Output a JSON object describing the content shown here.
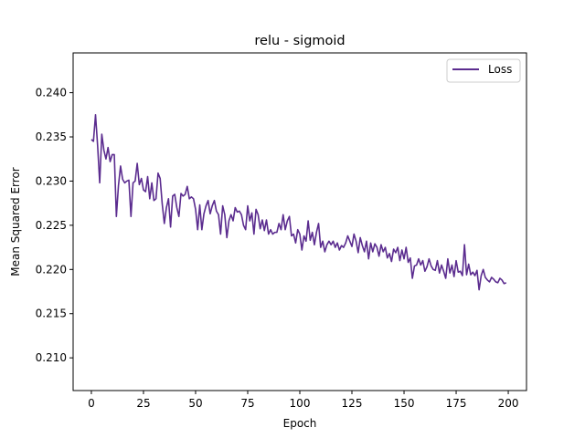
{
  "chart_data": {
    "type": "line",
    "title": "relu - sigmoid",
    "xlabel": "Epoch",
    "ylabel": "Mean Squared Error",
    "xlim": [
      -8.75,
      208.75
    ],
    "ylim": [
      0.2063,
      0.2445
    ],
    "xticks": [
      0,
      25,
      50,
      75,
      100,
      125,
      150,
      175,
      200
    ],
    "yticks": [
      0.21,
      0.215,
      0.22,
      0.225,
      0.23,
      0.235,
      0.24
    ],
    "ytick_labels": [
      "0.210",
      "0.215",
      "0.220",
      "0.225",
      "0.230",
      "0.235",
      "0.240"
    ],
    "grid": false,
    "legend": {
      "position": "top-right",
      "entries": [
        "Loss"
      ]
    },
    "series": [
      {
        "name": "Loss",
        "color": "#5b2c8f",
        "x_start": 0,
        "x_step": 1,
        "values": [
          0.2347,
          0.2345,
          0.2375,
          0.234,
          0.2298,
          0.2353,
          0.2335,
          0.2325,
          0.2338,
          0.2322,
          0.233,
          0.233,
          0.226,
          0.2295,
          0.2317,
          0.2302,
          0.2298,
          0.23,
          0.2301,
          0.226,
          0.2298,
          0.23,
          0.232,
          0.2296,
          0.2303,
          0.229,
          0.2288,
          0.2305,
          0.228,
          0.2298,
          0.2278,
          0.228,
          0.2309,
          0.2303,
          0.2274,
          0.2252,
          0.227,
          0.228,
          0.2248,
          0.2283,
          0.2285,
          0.227,
          0.226,
          0.2286,
          0.2283,
          0.2285,
          0.2294,
          0.228,
          0.2282,
          0.228,
          0.2268,
          0.2245,
          0.2273,
          0.2245,
          0.2263,
          0.2272,
          0.2278,
          0.2263,
          0.2272,
          0.2278,
          0.2266,
          0.2262,
          0.224,
          0.2272,
          0.2262,
          0.2236,
          0.2255,
          0.2262,
          0.2255,
          0.227,
          0.2265,
          0.2266,
          0.2262,
          0.225,
          0.2245,
          0.2272,
          0.2255,
          0.2264,
          0.224,
          0.2268,
          0.2262,
          0.2246,
          0.2256,
          0.2244,
          0.2256,
          0.224,
          0.2245,
          0.224,
          0.2242,
          0.2242,
          0.2252,
          0.2245,
          0.2262,
          0.2245,
          0.2255,
          0.226,
          0.2238,
          0.224,
          0.223,
          0.2245,
          0.224,
          0.2222,
          0.2238,
          0.2232,
          0.2255,
          0.2233,
          0.2242,
          0.2228,
          0.2242,
          0.2252,
          0.2225,
          0.2232,
          0.222,
          0.2228,
          0.2232,
          0.2228,
          0.2232,
          0.2225,
          0.223,
          0.2222,
          0.2227,
          0.2225,
          0.223,
          0.2238,
          0.2232,
          0.2226,
          0.224,
          0.2232,
          0.2219,
          0.2236,
          0.2227,
          0.222,
          0.2232,
          0.2212,
          0.223,
          0.222,
          0.2229,
          0.2225,
          0.2215,
          0.2228,
          0.222,
          0.2225,
          0.2213,
          0.2218,
          0.2209,
          0.2223,
          0.2219,
          0.2225,
          0.221,
          0.2222,
          0.2212,
          0.2225,
          0.2208,
          0.2213,
          0.219,
          0.2204,
          0.2205,
          0.2212,
          0.2205,
          0.221,
          0.2198,
          0.2203,
          0.2212,
          0.2204,
          0.22,
          0.2199,
          0.221,
          0.2196,
          0.2205,
          0.2198,
          0.219,
          0.2212,
          0.2196,
          0.2205,
          0.2192,
          0.221,
          0.2197,
          0.2198,
          0.2193,
          0.2228,
          0.2194,
          0.2206,
          0.2194,
          0.2197,
          0.2193,
          0.2199,
          0.2177,
          0.2193,
          0.22,
          0.2191,
          0.2188,
          0.2186,
          0.2191,
          0.2189,
          0.2186,
          0.2185,
          0.219,
          0.2188,
          0.2184,
          0.2185
        ]
      }
    ]
  }
}
